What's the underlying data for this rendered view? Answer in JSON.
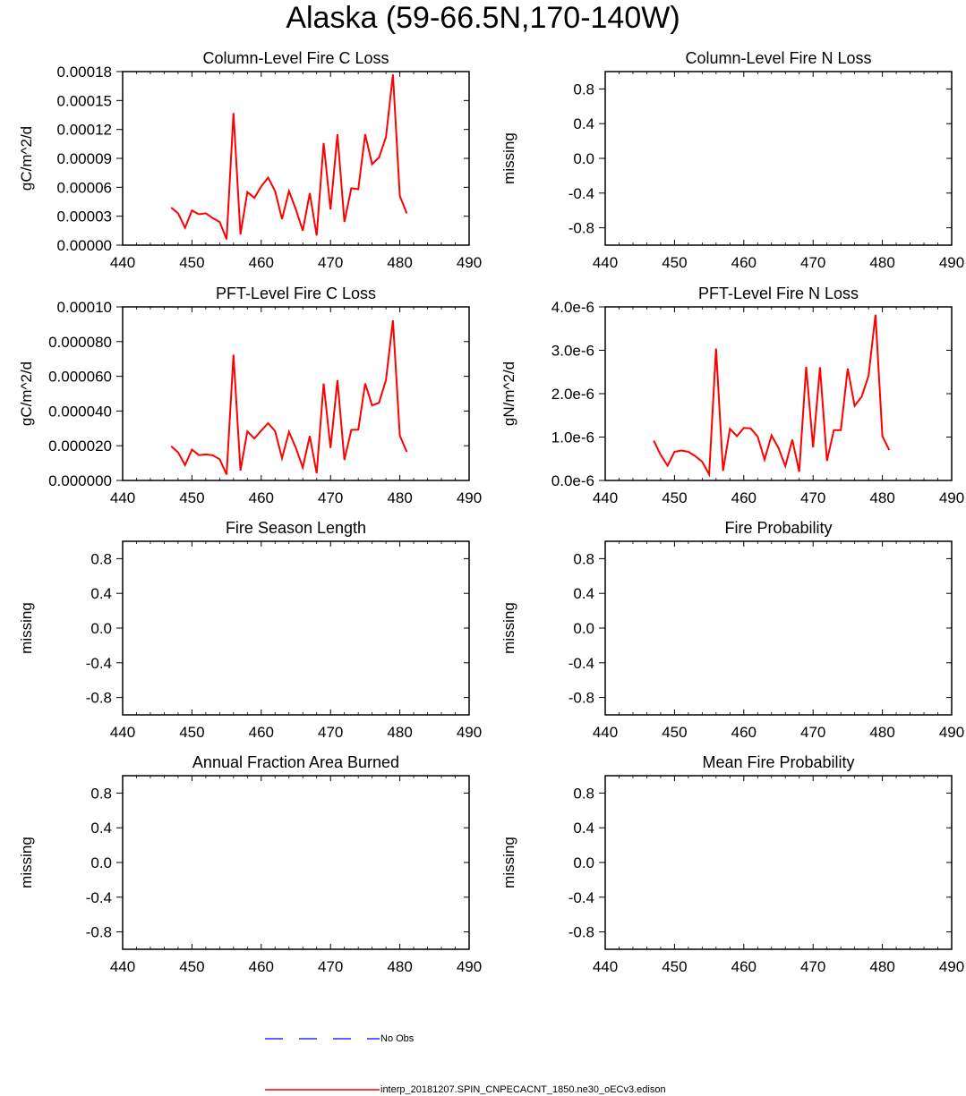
{
  "figure": {
    "title": "Alaska (59-66.5N,170-140W)"
  },
  "legend": [
    {
      "label": "No Obs",
      "color": "#0000ff",
      "style": "dashed"
    },
    {
      "label": "interp_20181207.SPIN_CNPECACNT_1850.ne30_oECv3.edison",
      "color": "#ff0000",
      "style": "solid"
    }
  ],
  "chart_data": [
    {
      "type": "line",
      "title": "Column-Level Fire C Loss",
      "ylabel": "gC/m^2/d",
      "xlim": [
        440,
        490
      ],
      "xticks": [
        440,
        450,
        460,
        470,
        480,
        490
      ],
      "ylim": [
        0,
        0.00018
      ],
      "yticks": [
        0,
        3e-05,
        6e-05,
        9e-05,
        0.00012,
        0.00015,
        0.00018
      ],
      "ytick_labels": [
        "0.00000",
        "0.00003",
        "0.00006",
        "0.00009",
        "0.00012",
        "0.00015",
        "0.00018"
      ],
      "series": [
        {
          "name": "interp_20181207.SPIN_CNPECACNT_1850.ne30_oECv3.edison",
          "color": "#ff0000",
          "x": [
            447,
            448,
            449,
            450,
            451,
            452,
            453,
            454,
            455,
            456,
            457,
            458,
            459,
            460,
            461,
            462,
            463,
            464,
            465,
            466,
            467,
            468,
            469,
            470,
            471,
            472,
            473,
            474,
            475,
            476,
            477,
            478,
            479,
            480,
            481
          ],
          "y": [
            3.9e-05,
            3.3e-05,
            1.8e-05,
            3.6e-05,
            3.2e-05,
            3.3e-05,
            2.8e-05,
            2.4e-05,
            6e-06,
            0.000137,
            1.1e-05,
            5.5e-05,
            4.9e-05,
            6.1e-05,
            7e-05,
            5.6e-05,
            2.7e-05,
            5.6e-05,
            3.7e-05,
            1.5e-05,
            5.4e-05,
            1e-05,
            0.000106,
            3.7e-05,
            0.000115,
            2.4e-05,
            5.9e-05,
            5.8e-05,
            0.000115,
            8.4e-05,
            9.1e-05,
            0.000112,
            0.000177,
            5.1e-05,
            3.3e-05
          ]
        }
      ]
    },
    {
      "type": "line",
      "title": "Column-Level Fire N Loss",
      "ylabel": "missing",
      "xlim": [
        440,
        490
      ],
      "xticks": [
        440,
        450,
        460,
        470,
        480,
        490
      ],
      "ylim": [
        -1,
        1
      ],
      "yticks": [
        -0.8,
        -0.4,
        0,
        0.4,
        0.8
      ],
      "ytick_labels": [
        "-0.8",
        "-0.4",
        "0.0",
        "0.4",
        "0.8"
      ],
      "series": []
    },
    {
      "type": "line",
      "title": "PFT-Level Fire C Loss",
      "ylabel": "gC/m^2/d",
      "xlim": [
        440,
        490
      ],
      "xticks": [
        440,
        450,
        460,
        470,
        480,
        490
      ],
      "ylim": [
        0,
        0.0001
      ],
      "yticks": [
        0,
        2e-05,
        4e-05,
        6e-05,
        8e-05,
        0.0001
      ],
      "ytick_labels": [
        "0.000000",
        "0.000020",
        "0.000040",
        "0.000060",
        "0.000080",
        "0.00010"
      ],
      "series": [
        {
          "name": "interp_20181207.SPIN_CNPECACNT_1850.ne30_oECv3.edison",
          "color": "#ff0000",
          "x": [
            447,
            448,
            449,
            450,
            451,
            452,
            453,
            454,
            455,
            456,
            457,
            458,
            459,
            460,
            461,
            462,
            463,
            464,
            465,
            466,
            467,
            468,
            469,
            470,
            471,
            472,
            473,
            474,
            475,
            476,
            477,
            478,
            479,
            480,
            481
          ],
          "y": [
            1.97e-05,
            1.62e-05,
            8.8e-06,
            1.78e-05,
            1.46e-05,
            1.5e-05,
            1.45e-05,
            1.22e-05,
            3.4e-06,
            7.25e-05,
            5.7e-06,
            2.83e-05,
            2.42e-05,
            2.87e-05,
            3.3e-05,
            2.84e-05,
            1.28e-05,
            2.8e-05,
            1.87e-05,
            7.5e-06,
            2.56e-05,
            4.2e-06,
            5.58e-05,
            1.87e-05,
            5.78e-05,
            1.18e-05,
            2.91e-05,
            2.93e-05,
            5.59e-05,
            4.32e-05,
            4.48e-05,
            5.78e-05,
            9.22e-05,
            2.59e-05,
            1.65e-05
          ]
        }
      ]
    },
    {
      "type": "line",
      "title": "PFT-Level Fire N Loss",
      "ylabel": "gN/m^2/d",
      "xlim": [
        440,
        490
      ],
      "xticks": [
        440,
        450,
        460,
        470,
        480,
        490
      ],
      "ylim": [
        0,
        4e-06
      ],
      "yticks": [
        0,
        1e-06,
        2e-06,
        3e-06,
        4e-06
      ],
      "ytick_labels": [
        "0.0e-6",
        "1.0e-6",
        "2.0e-6",
        "3.0e-6",
        "4.0e-6"
      ],
      "series": [
        {
          "name": "interp_20181207.SPIN_CNPECACNT_1850.ne30_oECv3.edison",
          "color": "#ff0000",
          "x": [
            447,
            448,
            449,
            450,
            451,
            452,
            453,
            454,
            455,
            456,
            457,
            458,
            459,
            460,
            461,
            462,
            463,
            464,
            465,
            466,
            467,
            468,
            469,
            470,
            471,
            472,
            473,
            474,
            475,
            476,
            477,
            478,
            479,
            480,
            481
          ],
          "y": [
            9.2e-07,
            5.9e-07,
            3.4e-07,
            6.6e-07,
            6.9e-07,
            6.6e-07,
            5.6e-07,
            4.3e-07,
            1.4e-07,
            3.04e-06,
            2.2e-07,
            1.19e-06,
            1.02e-06,
            1.21e-06,
            1.2e-06,
            1.01e-06,
            4.8e-07,
            1.04e-06,
            7.5e-07,
            3.3e-07,
            9.4e-07,
            2e-07,
            2.62e-06,
            7.6e-07,
            2.61e-06,
            4.5e-07,
            1.16e-06,
            1.16e-06,
            2.58e-06,
            1.72e-06,
            1.93e-06,
            2.41e-06,
            3.82e-06,
            1.02e-06,
            7e-07
          ]
        }
      ]
    },
    {
      "type": "line",
      "title": "Fire Season Length",
      "ylabel": "missing",
      "xlim": [
        440,
        490
      ],
      "xticks": [
        440,
        450,
        460,
        470,
        480,
        490
      ],
      "ylim": [
        -1,
        1
      ],
      "yticks": [
        -0.8,
        -0.4,
        0,
        0.4,
        0.8
      ],
      "ytick_labels": [
        "-0.8",
        "-0.4",
        "0.0",
        "0.4",
        "0.8"
      ],
      "series": []
    },
    {
      "type": "line",
      "title": "Fire Probability",
      "ylabel": "missing",
      "xlim": [
        440,
        490
      ],
      "xticks": [
        440,
        450,
        460,
        470,
        480,
        490
      ],
      "ylim": [
        -1,
        1
      ],
      "yticks": [
        -0.8,
        -0.4,
        0,
        0.4,
        0.8
      ],
      "ytick_labels": [
        "-0.8",
        "-0.4",
        "0.0",
        "0.4",
        "0.8"
      ],
      "series": []
    },
    {
      "type": "line",
      "title": "Annual Fraction Area Burned",
      "ylabel": "missing",
      "xlim": [
        440,
        490
      ],
      "xticks": [
        440,
        450,
        460,
        470,
        480,
        490
      ],
      "ylim": [
        -1,
        1
      ],
      "yticks": [
        -0.8,
        -0.4,
        0,
        0.4,
        0.8
      ],
      "ytick_labels": [
        "-0.8",
        "-0.4",
        "0.0",
        "0.4",
        "0.8"
      ],
      "series": []
    },
    {
      "type": "line",
      "title": "Mean Fire Probability",
      "ylabel": "missing",
      "xlim": [
        440,
        490
      ],
      "xticks": [
        440,
        450,
        460,
        470,
        480,
        490
      ],
      "ylim": [
        -1,
        1
      ],
      "yticks": [
        -0.8,
        -0.4,
        0,
        0.4,
        0.8
      ],
      "ytick_labels": [
        "-0.8",
        "-0.4",
        "0.0",
        "0.4",
        "0.8"
      ],
      "series": []
    }
  ]
}
